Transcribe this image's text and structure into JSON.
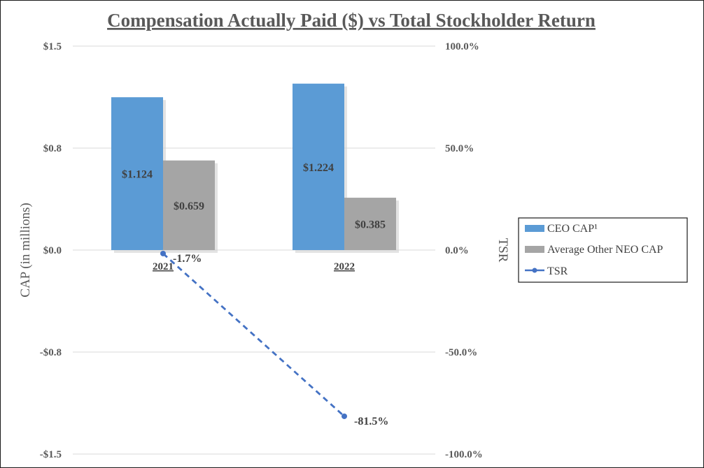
{
  "chart_data": {
    "type": "bar",
    "title": "Compensation Actually Paid ($) vs Total Stockholder Return",
    "categories": [
      "2021",
      "2022"
    ],
    "ylabel": "CAP (in millions)",
    "y2label": "TSR",
    "ylim": [
      -1.5,
      1.5
    ],
    "y2lim": [
      -100,
      100
    ],
    "y_ticks": [
      {
        "value": 1.5,
        "label": "$1.5"
      },
      {
        "value": 0.75,
        "label": "$0.8"
      },
      {
        "value": 0,
        "label": "$0.0"
      },
      {
        "value": -0.75,
        "label": "-$0.8"
      },
      {
        "value": -1.5,
        "label": "-$1.5"
      }
    ],
    "y2_ticks": [
      {
        "value": 100,
        "label": "100.0%"
      },
      {
        "value": 50,
        "label": "50.0%"
      },
      {
        "value": 0,
        "label": "0.0%"
      },
      {
        "value": -50,
        "label": "-50.0%"
      },
      {
        "value": -100,
        "label": "-100.0%"
      }
    ],
    "series": [
      {
        "name": "CEO CAP¹",
        "kind": "bar",
        "axis": "left",
        "color": "#5b9bd5",
        "values": [
          1.124,
          1.224
        ],
        "labels": [
          "$1.124",
          "$1.224"
        ]
      },
      {
        "name": "Average Other NEO CAP",
        "kind": "bar",
        "axis": "left",
        "color": "#a5a5a5",
        "values": [
          0.659,
          0.385
        ],
        "labels": [
          "$0.659",
          "$0.385"
        ]
      },
      {
        "name": "TSR",
        "kind": "line",
        "axis": "right",
        "color": "#4472c4",
        "dashed": true,
        "values": [
          -1.7,
          -81.5
        ],
        "labels": [
          "-1.7%",
          "-81.5%"
        ]
      }
    ],
    "legend_position": "right"
  }
}
